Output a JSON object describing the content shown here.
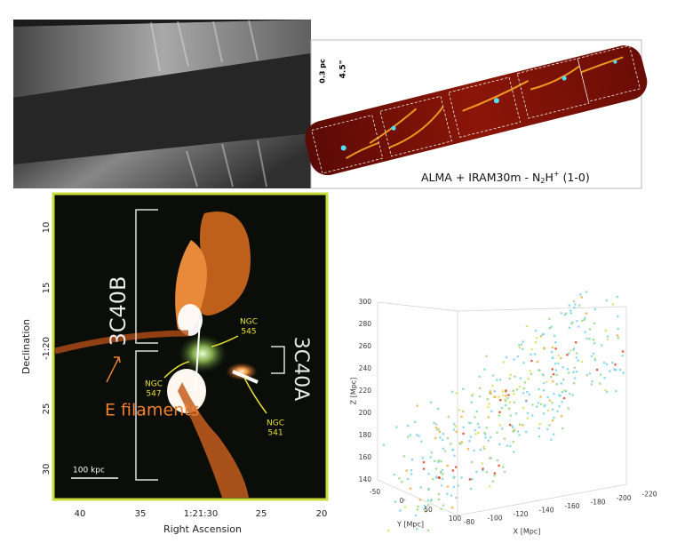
{
  "alma_panel": {
    "label_parts": [
      "ALMA + IRAM30m - N",
      "2",
      "H",
      "+",
      " (1-0)"
    ],
    "angular_scale": "4.5\"",
    "length_scale": "0.3 pc"
  },
  "radio_panel": {
    "source_b": "3C40B",
    "source_a": "3C40A",
    "ngc_545": [
      "NGC",
      "545"
    ],
    "ngc_547": [
      "NGC",
      "547"
    ],
    "ngc_541": [
      "NGC",
      "541"
    ],
    "filaments": "E filaments",
    "scale_bar": "100 kpc",
    "y_axis": {
      "title": "Declination",
      "ticks": [
        "10",
        "15",
        "-1:20",
        "25",
        "30"
      ]
    },
    "x_axis": {
      "title": "Right Ascension",
      "ticks": [
        "40",
        "35",
        "1:21:30",
        "25",
        "20"
      ]
    }
  },
  "cube_panel": {
    "z_axis": {
      "title": "Z [Mpc]",
      "ticks": [
        "300",
        "280",
        "260",
        "240",
        "220",
        "200",
        "180",
        "160",
        "140"
      ]
    },
    "y_axis": {
      "title": "Y [Mpc]",
      "ticks": [
        "-50",
        "0",
        "50",
        "100"
      ]
    },
    "x_axis": {
      "title": "X [Mpc]",
      "ticks": [
        "-80",
        "-100",
        "-120",
        "-140",
        "-160",
        "-180",
        "-200",
        "-220"
      ]
    }
  }
}
